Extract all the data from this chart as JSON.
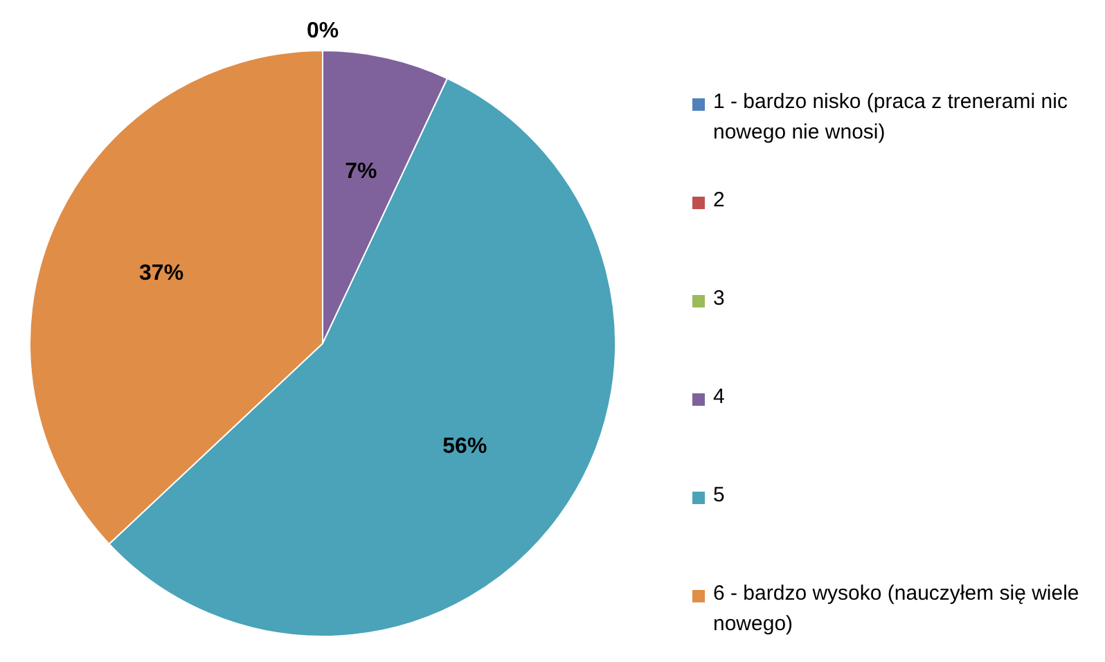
{
  "chart_data": {
    "type": "pie",
    "categories": [
      "1 - bardzo nisko (praca z trenerami nic nowego nie wnosi)",
      "2",
      "3",
      "4",
      "5",
      "6 - bardzo wysoko (nauczyłem się wiele nowego)"
    ],
    "values": [
      0,
      0,
      0,
      7,
      56,
      37
    ],
    "colors": [
      "#4f81bd",
      "#c0504d",
      "#9bbb59",
      "#7f629c",
      "#4aa3b8",
      "#e08d48"
    ],
    "value_labels": [
      "0%",
      null,
      null,
      "7%",
      "56%",
      "37%"
    ],
    "legend": "right"
  }
}
